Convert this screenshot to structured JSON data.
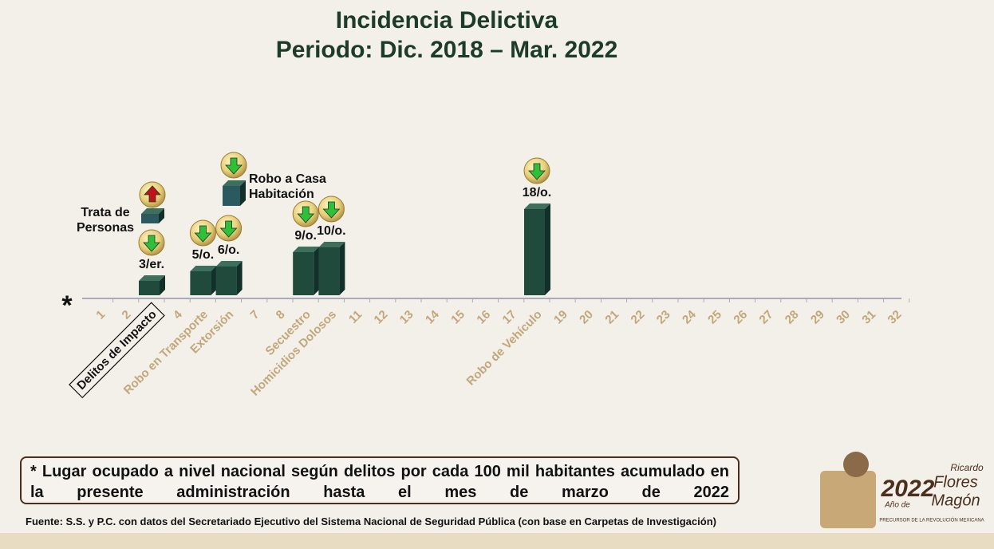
{
  "chart_data": {
    "type": "bar",
    "title": [
      "Incidencia Delictiva",
      "Periodo: Dic. 2018 – Mar. 2022"
    ],
    "axis_marker": "*",
    "categories": [
      "1",
      "2",
      "Delitos de Impacto",
      "4",
      "Robo en Transporte",
      "Extorsión",
      "7",
      "8",
      "Secuestro",
      "Homicidios Dolosos",
      "11",
      "12",
      "13",
      "14",
      "15",
      "16",
      "17",
      "Robo de Vehículo",
      "19",
      "20",
      "21",
      "22",
      "23",
      "24",
      "25",
      "26",
      "27",
      "28",
      "29",
      "30",
      "31",
      "32"
    ],
    "values": [
      null,
      null,
      3,
      null,
      5,
      6,
      null,
      null,
      9,
      10,
      null,
      null,
      null,
      null,
      null,
      null,
      null,
      18,
      null,
      null,
      null,
      null,
      null,
      null,
      null,
      null,
      null,
      null,
      null,
      null,
      null,
      null
    ],
    "value_labels": [
      null,
      null,
      "3/er.",
      null,
      "5/o.",
      "6/o.",
      null,
      null,
      "9/o.",
      "10/o.",
      null,
      null,
      null,
      null,
      null,
      null,
      null,
      "18/o.",
      null,
      null,
      null,
      null,
      null,
      null,
      null,
      null,
      null,
      null,
      null,
      null,
      null,
      null
    ],
    "trend": [
      null,
      null,
      "down",
      null,
      "down",
      "down",
      null,
      null,
      "down",
      "down",
      null,
      null,
      null,
      null,
      null,
      null,
      null,
      "down",
      null,
      null,
      null,
      null,
      null,
      null,
      null,
      null,
      null,
      null,
      null,
      null,
      null,
      null
    ],
    "color": "#1f4a3c",
    "ylim": [
      0,
      20
    ],
    "annotations": [
      {
        "text": [
          "Trata de",
          "Personas"
        ],
        "trend": "up"
      },
      {
        "text": [
          "Robo a Casa",
          "Habitación"
        ],
        "trend": "down"
      }
    ]
  },
  "footnote": "* Lugar ocupado a nivel nacional según delitos por cada 100 mil habitantes acumulado en la presente administración hasta el mes de marzo de 2022",
  "source": "Fuente: S.S. y P.C. con datos del Secretariado Ejecutivo del Sistema Nacional de Seguridad Pública (con base en Carpetas de Investigación)",
  "logo": {
    "year": "2022",
    "top": "Ricardo",
    "pre": "Año de",
    "name1": "Flores",
    "name2": "Magón",
    "tagline": "PRECURSOR DE LA REVOLUCIÓN MEXICANA"
  }
}
